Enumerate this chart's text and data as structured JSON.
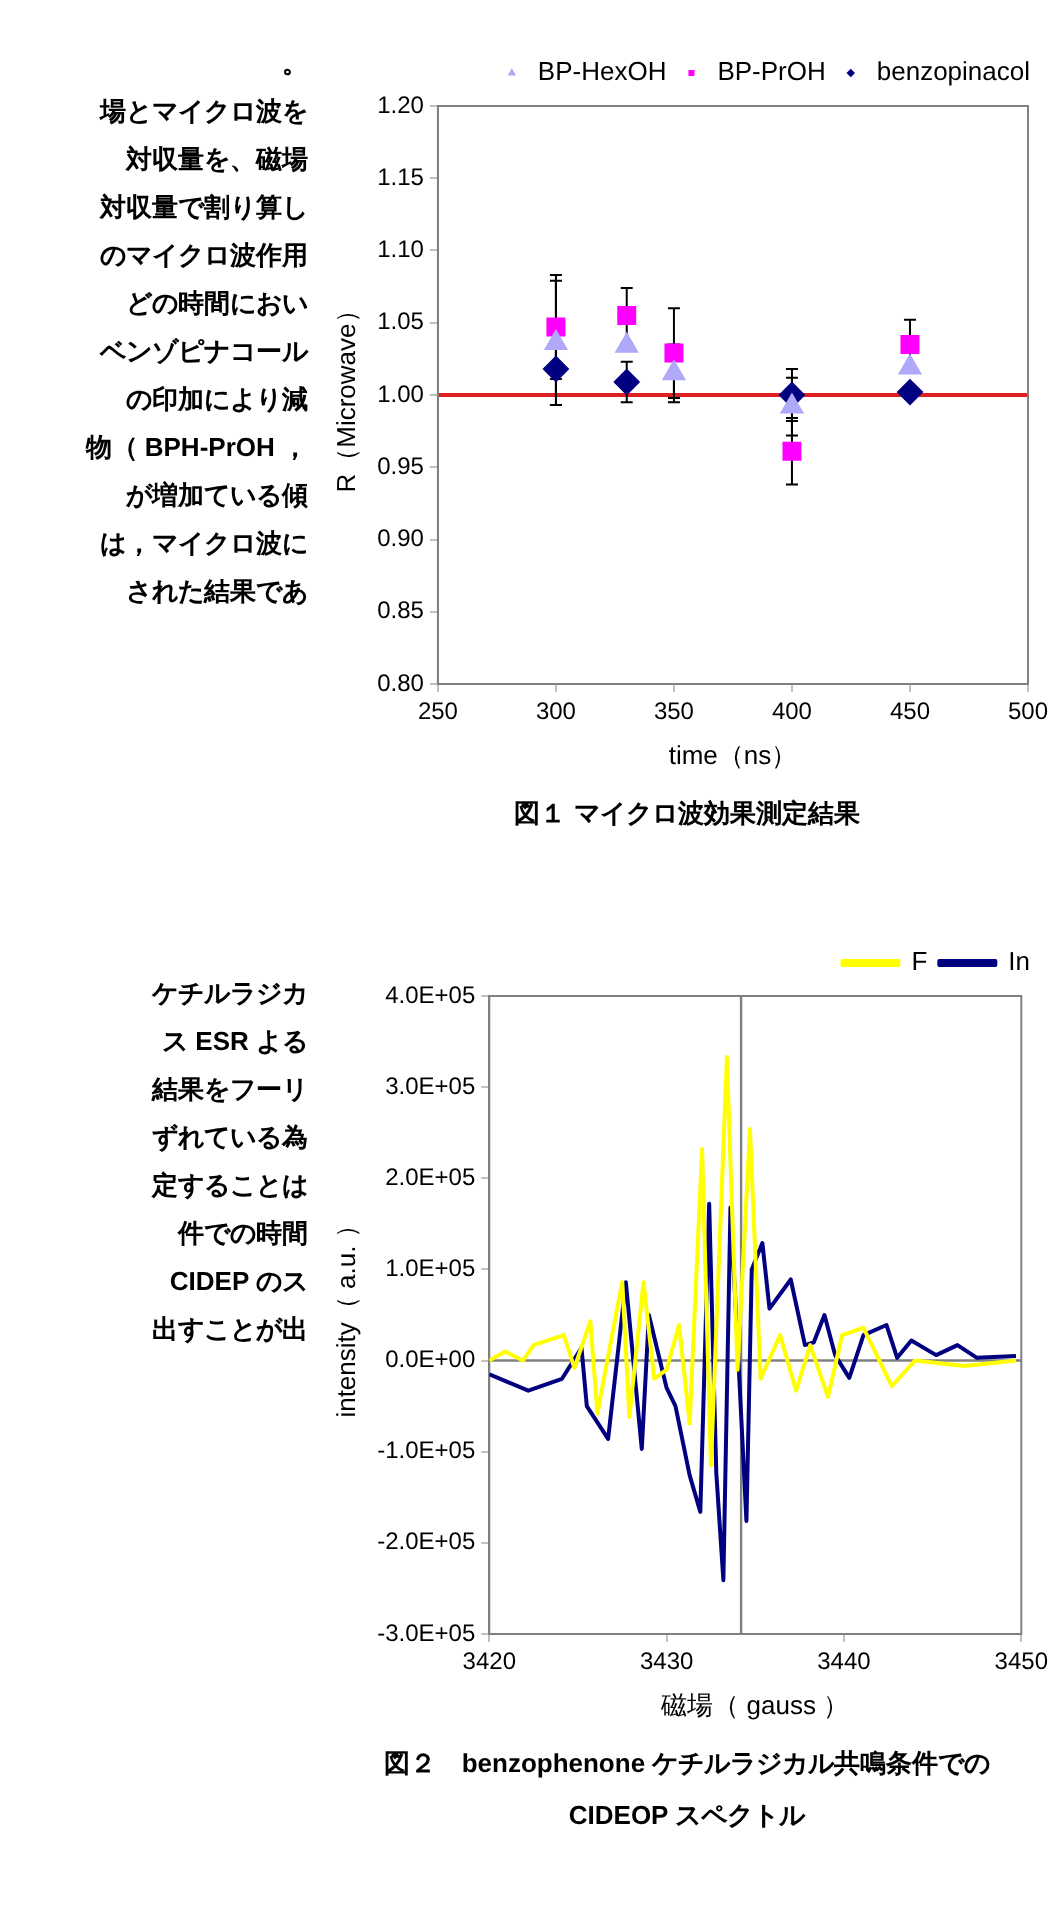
{
  "chart_data": [
    {
      "type": "scatter",
      "title": "図１ マイクロ波効果測定結果",
      "xlabel": "time（ns）",
      "ylabel": "R（Microwave）",
      "annotations": [
        "。",
        "場とマイクロ波を",
        "対収量を、磁場",
        "対収量で割り算し",
        "のマイクロ波作用",
        "どの時間におい",
        "ベンゾピナコール",
        "の印加により減",
        "物（ BPH-PrOH ，",
        "が増加ている傾",
        "は，マイクロ波に",
        "された結果であ"
      ],
      "x": [
        300,
        330,
        350,
        400,
        450
      ],
      "series": [
        {
          "name": "benzopinacol",
          "color": "#000080",
          "marker": "diamond",
          "values": [
            1.018,
            1.009,
            null,
            1.0,
            1.002
          ],
          "errors": [
            0.025,
            0.014,
            null,
            0.018,
            null
          ]
        },
        {
          "name": "BP-PrOH",
          "color": "#ff00ff",
          "marker": "square",
          "values": [
            1.047,
            1.055,
            1.029,
            0.961,
            1.035
          ],
          "errors": [
            0.036,
            0.019,
            0.031,
            0.023,
            0.017
          ]
        },
        {
          "name": "BP-HexOH",
          "color": "#b0a8f8",
          "marker": "triangle",
          "values": [
            1.036,
            1.034,
            1.015,
            0.992,
            1.019
          ],
          "errors": [
            0.043,
            null,
            0.02,
            0.02,
            null
          ]
        }
      ],
      "xlim": [
        250,
        500
      ],
      "xticks": [
        250,
        300,
        350,
        400,
        450,
        500
      ],
      "ylim": [
        0.8,
        1.2
      ],
      "yticks": [
        {
          "value": 0.8,
          "label": "0.80"
        },
        0.85,
        {
          "value": 0.9,
          "label": "0.90"
        },
        0.95,
        {
          "value": 1.0,
          "label": "1.00"
        },
        1.05,
        {
          "value": 1.1,
          "label": "1.10"
        },
        1.15,
        {
          "value": 1.2,
          "label": "1.20"
        }
      ],
      "ref_lines": [
        {
          "axis": "y",
          "value": 1.0,
          "color": "#e02020"
        }
      ],
      "grid": false,
      "legend": "top right"
    },
    {
      "type": "line",
      "title": "図２　benzophenone ケチルラジカル共鳴条件での\nCIDEOP スペクトル",
      "xlabel": "磁場（ gauss ）",
      "ylabel": "intensity（ a.u. ）",
      "annotations": [
        "ケチルラジカ",
        "ス ESR よる",
        "結果をフーリ",
        "ずれている為",
        "定することは",
        "件での時間",
        "CIDEP のス",
        "出すことが出"
      ],
      "series": [
        {
          "name": "In",
          "color": "#000080",
          "x": [
            3420,
            3422.2,
            3424.1,
            3425.2,
            3425.5,
            3426.7,
            3427.7,
            3428.6,
            3429,
            3430,
            3430.5,
            3431.3,
            3431.9,
            3432.4,
            3432.8,
            3433.2,
            3433.6,
            3434.1,
            3434.5,
            3434.8,
            3435.4,
            3435.8,
            3437,
            3437.8,
            3438.3,
            3438.9,
            3439.5,
            3440.3,
            3441.1,
            3442.4,
            3443,
            3443.8,
            3445.2,
            3446.4,
            3447.5,
            3449.7
          ],
          "values": [
            -15000,
            -33000,
            -20000,
            14000,
            -50000,
            -86000,
            86000,
            -97000,
            50000,
            -30000,
            -50000,
            -126000,
            -166000,
            172000,
            -123000,
            -241000,
            168000,
            -20000,
            -176000,
            100000,
            129000,
            57000,
            89000,
            17000,
            20000,
            50000,
            6000,
            -19000,
            28000,
            39000,
            3000,
            22000,
            6000,
            17000,
            3000,
            5000
          ]
        },
        {
          "name": "F",
          "color": "#ffff00",
          "x": [
            3420,
            3420.9,
            3421.9,
            3422.5,
            3424.2,
            3424.8,
            3425.7,
            3426.1,
            3427.1,
            3427.5,
            3427.9,
            3428.7,
            3429.3,
            3430,
            3430.7,
            3431.3,
            3432,
            3432.5,
            3433.4,
            3434,
            3434.7,
            3435.3,
            3436.4,
            3437.3,
            3438.1,
            3439.1,
            3439.9,
            3441.1,
            3442.7,
            3444,
            3446.8,
            3449.7
          ],
          "values": [
            0,
            10000,
            0,
            17000,
            28000,
            -8000,
            43000,
            -58000,
            46000,
            86000,
            -62000,
            86000,
            -20000,
            -10000,
            39000,
            -69000,
            232000,
            -115000,
            333000,
            -10000,
            254000,
            -20000,
            28000,
            -33000,
            17000,
            -40000,
            28000,
            36000,
            -28000,
            0,
            -6000,
            0
          ]
        }
      ],
      "xlim": [
        3420,
        3450
      ],
      "xticks": [
        3420,
        3430,
        3440,
        3450
      ],
      "ylim": [
        -300000,
        400000
      ],
      "yticks": [
        {
          "value": -300000,
          "label": "-3.0E+05"
        },
        {
          "value": -200000,
          "label": "-2.0E+05"
        },
        {
          "value": -100000,
          "label": "-1.0E+05"
        },
        {
          "value": 0,
          "label": "0.0E+00"
        },
        {
          "value": 100000,
          "label": "1.0E+05"
        },
        {
          "value": 200000,
          "label": "2.0E+05"
        },
        {
          "value": 300000,
          "label": "3.0E+05"
        },
        {
          "value": 400000,
          "label": "4.0E+05"
        }
      ],
      "ref_lines": [
        {
          "axis": "x",
          "value": 3434.2,
          "color": "#808080"
        },
        {
          "axis": "y",
          "value": 0,
          "color": "#808080"
        }
      ],
      "grid": false,
      "legend": "top right",
      "marker": "none"
    }
  ]
}
